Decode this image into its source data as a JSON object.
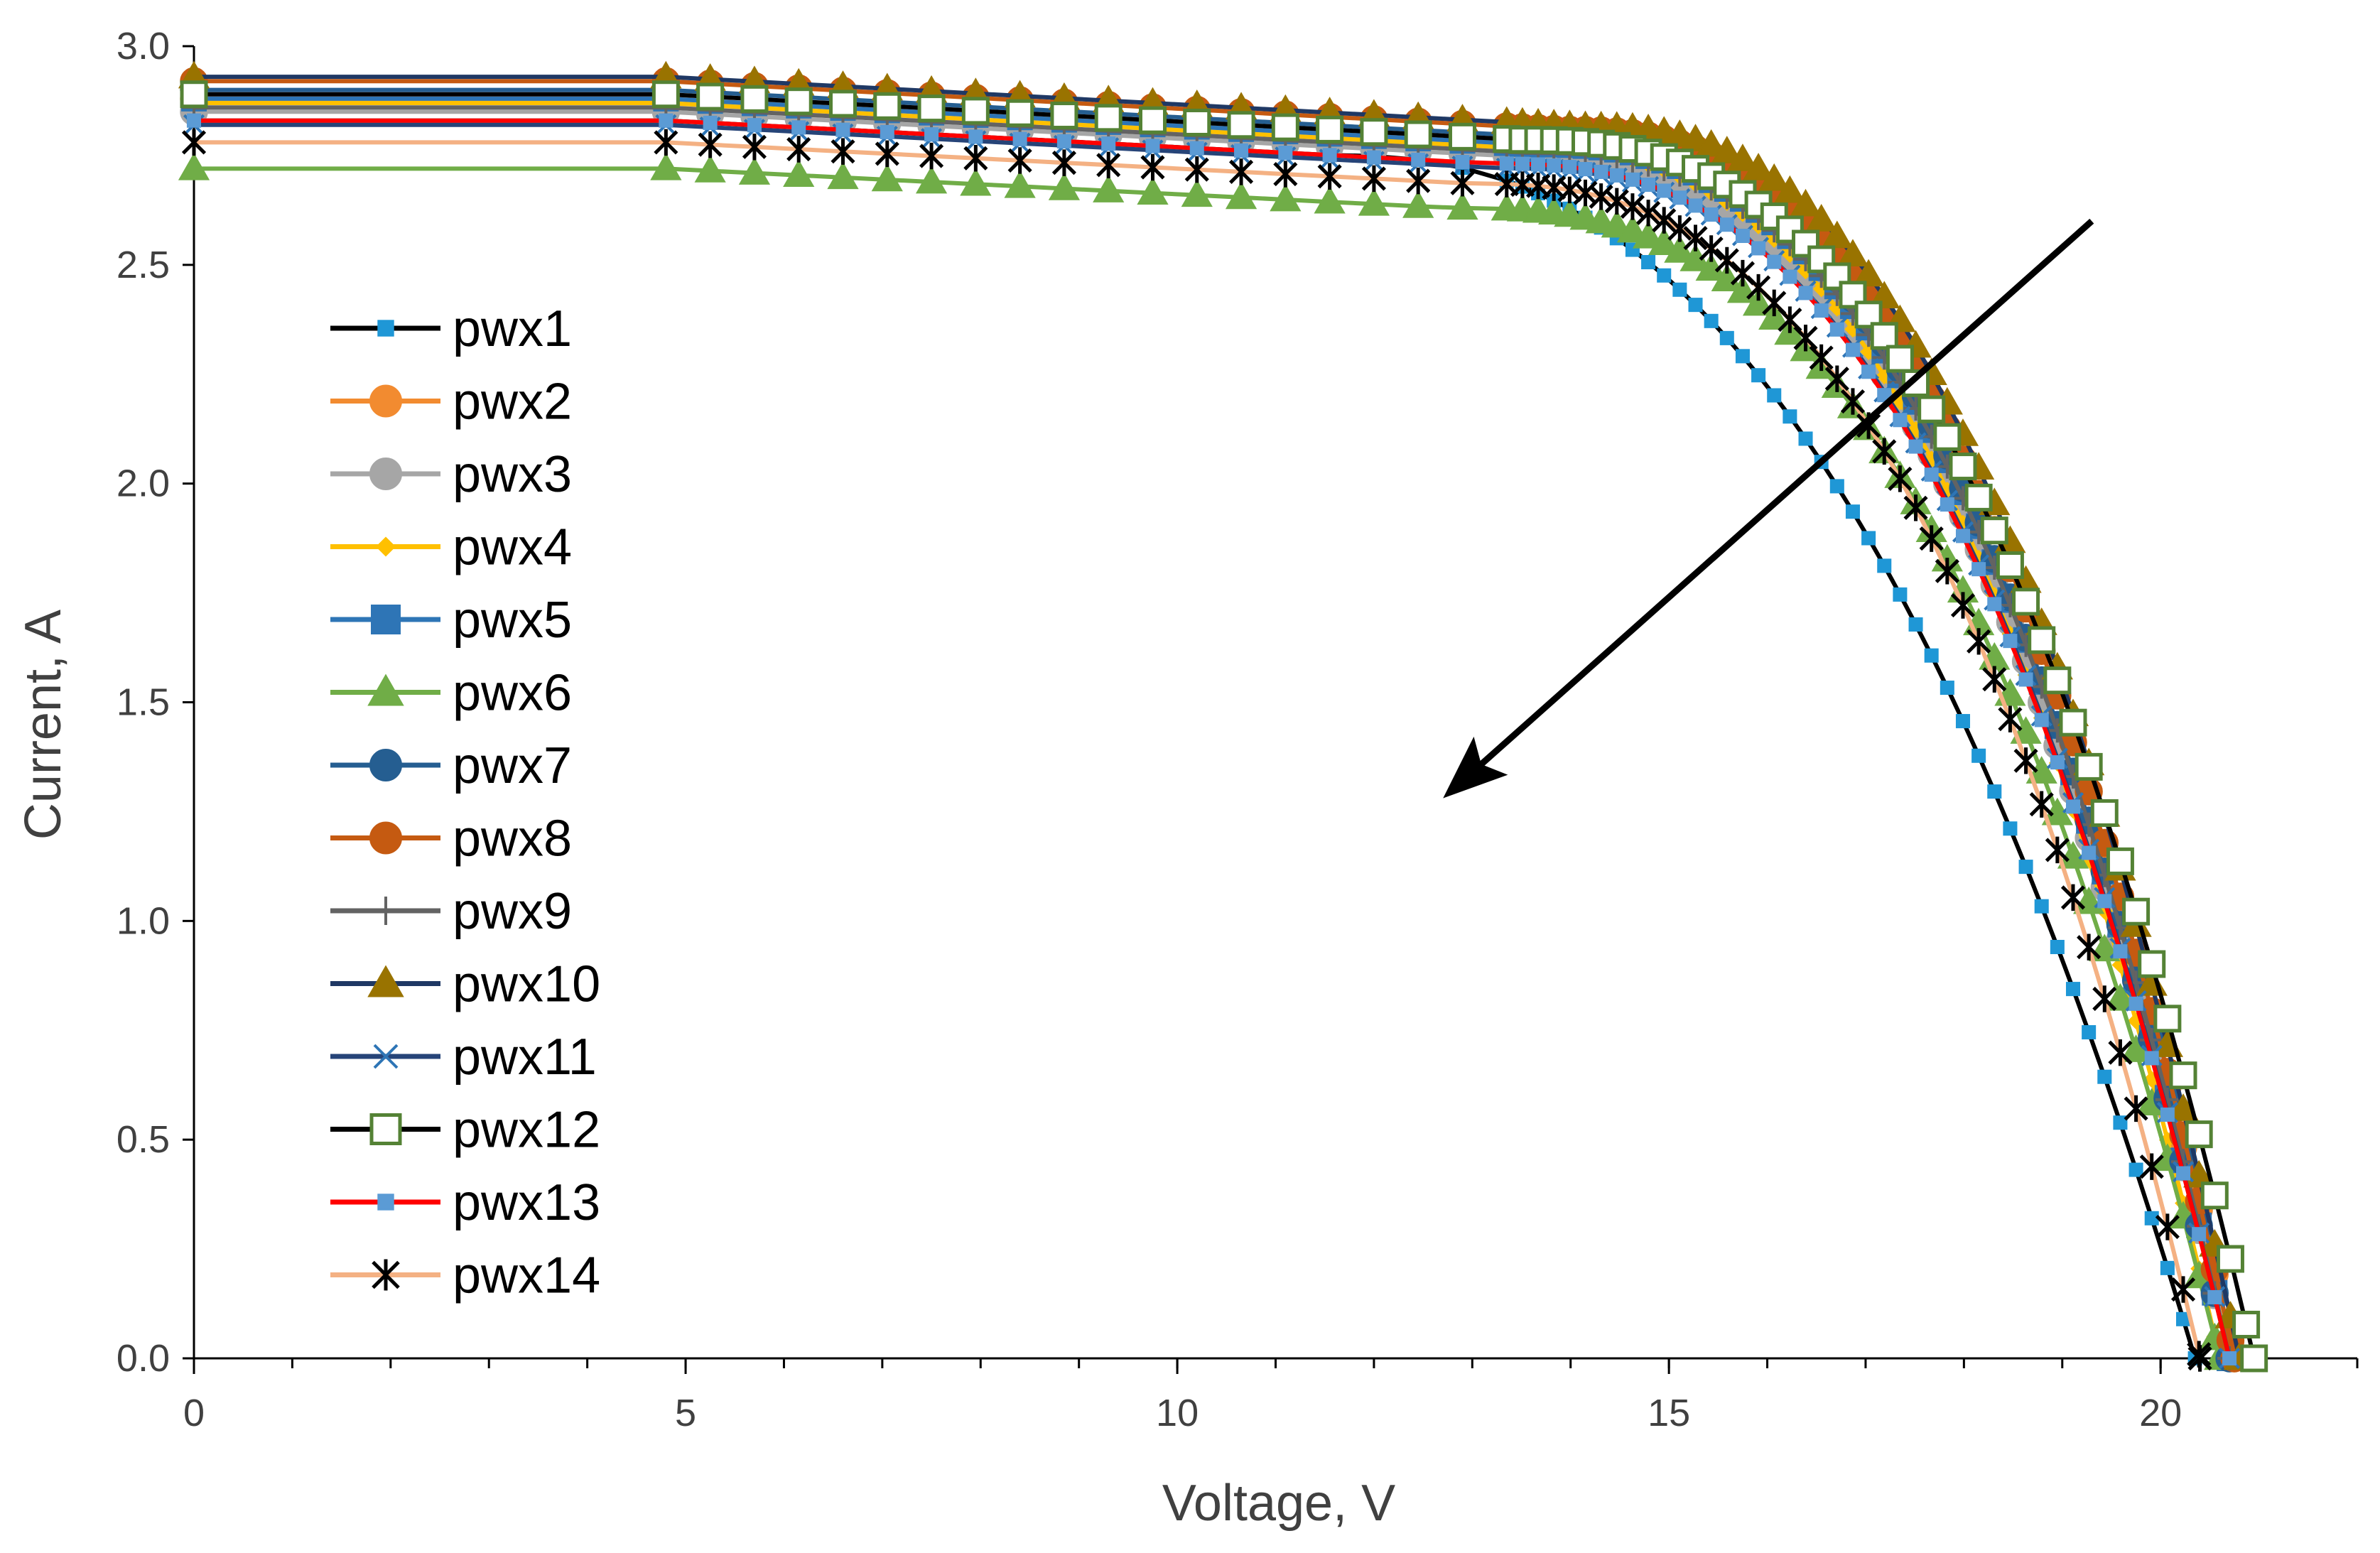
{
  "chart_data": {
    "type": "line",
    "title": "",
    "xlabel": "Voltage, V",
    "ylabel": "Current, A",
    "xlim": [
      0,
      22
    ],
    "ylim": [
      0,
      3.0
    ],
    "x_ticks": [
      "0",
      "5",
      "10",
      "15",
      "20"
    ],
    "x_tick_values": [
      0,
      5,
      10,
      15,
      20
    ],
    "x_minor_step": 1,
    "y_ticks": [
      "0.0",
      "0.5",
      "1.0",
      "1.5",
      "2.0",
      "2.5",
      "3.0"
    ],
    "y_tick_values": [
      0.0,
      0.5,
      1.0,
      1.5,
      2.0,
      2.5,
      3.0
    ],
    "grid": false,
    "legend_position": "left",
    "annotation": {
      "kind": "arrow",
      "from": [
        19.3,
        2.6
      ],
      "to": [
        12.8,
        1.3
      ],
      "color": "#000000"
    },
    "series": [
      {
        "name": "pwx1",
        "color": "#000000",
        "marker": "square-small",
        "marker_color": "#1f97d6",
        "isc": 2.83,
        "voc": 20.35,
        "knee_v": 11.6,
        "curv": 2.4
      },
      {
        "name": "pwx2",
        "color": "#f28b30",
        "marker": "circle",
        "marker_color": "#f28b30",
        "isc": 2.88,
        "voc": 20.75,
        "knee_v": 13.4,
        "curv": 2.6
      },
      {
        "name": "pwx3",
        "color": "#a6a6a6",
        "marker": "circle",
        "marker_color": "#a6a6a6",
        "isc": 2.85,
        "voc": 20.7,
        "knee_v": 13.4,
        "curv": 2.6
      },
      {
        "name": "pwx4",
        "color": "#ffc000",
        "marker": "diamond-small",
        "marker_color": "#ffc000",
        "isc": 2.87,
        "voc": 20.6,
        "knee_v": 13.4,
        "curv": 2.6
      },
      {
        "name": "pwx5",
        "color": "#2e75b6",
        "marker": "square",
        "marker_color": "#2e75b6",
        "isc": 2.88,
        "voc": 20.7,
        "knee_v": 13.6,
        "curv": 2.6
      },
      {
        "name": "pwx6",
        "color": "#70ad47",
        "marker": "triangle",
        "marker_color": "#70ad47",
        "isc": 2.72,
        "voc": 20.6,
        "knee_v": 12.8,
        "curv": 2.7
      },
      {
        "name": "pwx7",
        "color": "#255e91",
        "marker": "circle",
        "marker_color": "#255e91",
        "isc": 2.9,
        "voc": 20.7,
        "knee_v": 13.8,
        "curv": 2.5
      },
      {
        "name": "pwx8",
        "color": "#c55a11",
        "marker": "circle",
        "marker_color": "#c55a11",
        "isc": 2.92,
        "voc": 20.75,
        "knee_v": 14.0,
        "curv": 2.5
      },
      {
        "name": "pwx9",
        "color": "#636363",
        "marker": "plus",
        "marker_color": "#636363",
        "isc": 2.86,
        "voc": 20.7,
        "knee_v": 13.6,
        "curv": 2.6
      },
      {
        "name": "pwx10",
        "color": "#1f3864",
        "marker": "triangle",
        "marker_color": "#997300",
        "isc": 2.93,
        "voc": 20.8,
        "knee_v": 14.2,
        "curv": 2.5
      },
      {
        "name": "pwx11",
        "color": "#264478",
        "marker": "x",
        "marker_color": "#2e75b6",
        "isc": 2.82,
        "voc": 20.7,
        "knee_v": 13.3,
        "curv": 2.6
      },
      {
        "name": "pwx12",
        "color": "#000000",
        "marker": "square-open",
        "marker_color": "#548235",
        "isc": 2.89,
        "voc": 20.95,
        "knee_v": 13.5,
        "curv": 2.6
      },
      {
        "name": "pwx13",
        "color": "#ff0000",
        "marker": "square-small",
        "marker_color": "#5b9bd5",
        "isc": 2.83,
        "voc": 20.7,
        "knee_v": 13.2,
        "curv": 2.6
      },
      {
        "name": "pwx14",
        "color": "#f4b183",
        "marker": "asterisk",
        "marker_color": "#000000",
        "isc": 2.78,
        "voc": 20.4,
        "knee_v": 13.0,
        "curv": 2.6
      }
    ]
  }
}
